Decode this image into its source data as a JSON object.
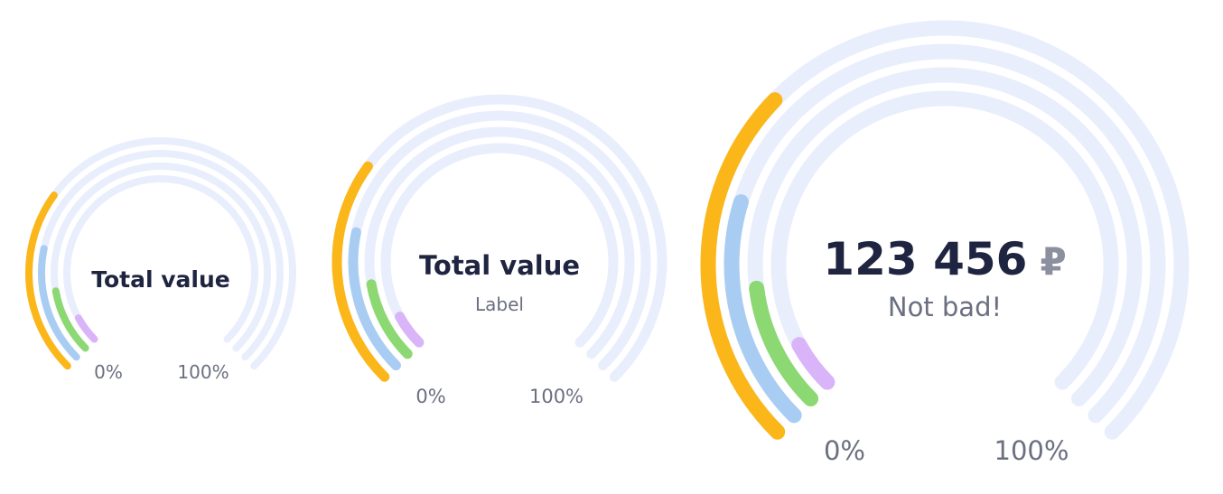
{
  "colors": {
    "track": "#e9eefd",
    "series": [
      "#fbb61a",
      "#a9cdf2",
      "#8cd872",
      "#d9b4f9"
    ]
  },
  "chart_data": [
    {
      "type": "radial-bar",
      "title": "Total value",
      "subtitle": "",
      "axis_min_label": "0%",
      "axis_max_label": "100%",
      "series": [
        {
          "values": [
            30
          ]
        },
        {
          "values": [
            21
          ]
        },
        {
          "values": [
            13
          ]
        },
        {
          "values": [
            6
          ]
        }
      ]
    },
    {
      "type": "radial-bar",
      "title": "Total value",
      "subtitle": "Label",
      "axis_min_label": "0%",
      "axis_max_label": "100%",
      "series": [
        {
          "values": [
            30
          ]
        },
        {
          "values": [
            21
          ]
        },
        {
          "values": [
            13
          ]
        },
        {
          "values": [
            6
          ]
        }
      ]
    },
    {
      "type": "radial-bar",
      "title": "123 456",
      "currency": "₽",
      "subtitle": "Not bad!",
      "axis_min_label": "0%",
      "axis_max_label": "100%",
      "series": [
        {
          "values": [
            33
          ]
        },
        {
          "values": [
            23
          ]
        },
        {
          "values": [
            14
          ]
        },
        {
          "values": [
            6
          ]
        }
      ]
    }
  ]
}
